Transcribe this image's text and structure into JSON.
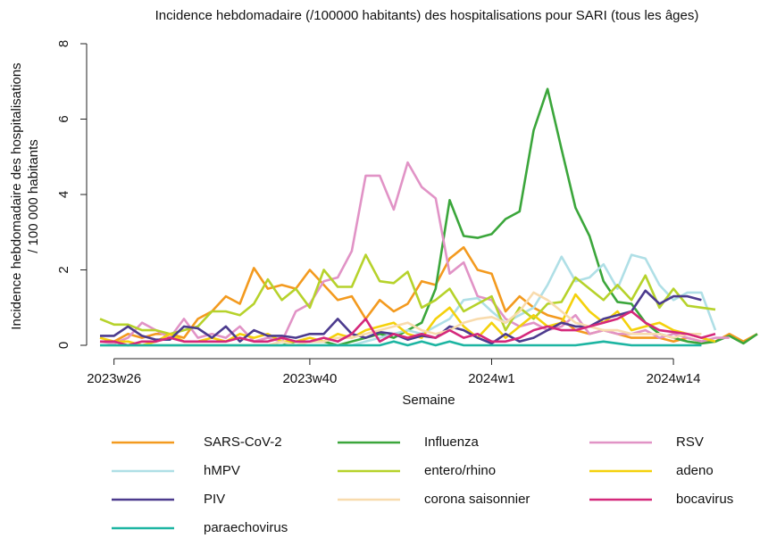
{
  "chart_data": {
    "type": "line",
    "title": "Incidence hebdomadaire (/100000 habitants) des hospitalisations pour SARI (tous les âges)",
    "xlabel": "Semaine",
    "ylabel": [
      "Incidence hebdomadaire des hospitalisations",
      "/ 100 000 habitants"
    ],
    "categories": [
      null,
      "2023w26",
      null,
      null,
      null,
      null,
      null,
      null,
      null,
      null,
      null,
      null,
      null,
      null,
      null,
      "2023w40",
      null,
      null,
      null,
      null,
      null,
      null,
      null,
      null,
      null,
      null,
      null,
      null,
      "2024w1",
      null,
      null,
      null,
      null,
      null,
      null,
      null,
      null,
      null,
      null,
      null,
      null,
      "2024w14",
      null,
      null,
      null,
      null,
      null,
      null
    ],
    "ylim": [
      -0.3,
      8.5
    ],
    "yticks": [
      0,
      2,
      4,
      6,
      8
    ],
    "series": [
      {
        "name": "SARS-CoV-2",
        "color": "#f39a1f",
        "values": [
          0.1,
          0.1,
          0.3,
          0.2,
          0.3,
          0.3,
          0.2,
          0.7,
          0.9,
          1.3,
          1.1,
          2.05,
          1.5,
          1.6,
          1.5,
          2.0,
          1.6,
          1.2,
          1.3,
          0.7,
          1.2,
          0.9,
          1.1,
          1.7,
          1.6,
          2.3,
          2.6,
          2.0,
          1.9,
          0.9,
          1.3,
          1.0,
          0.8,
          0.7,
          0.4,
          0.3,
          0.4,
          0.3,
          0.2,
          0.2,
          0.2,
          0.1,
          0.2,
          0.1,
          0.1,
          0.3,
          0.1,
          0.3
        ]
      },
      {
        "name": "Influenza",
        "color": "#3ba63b",
        "values": [
          0,
          0,
          0,
          0,
          0,
          0,
          0,
          0,
          0,
          0,
          0,
          0,
          0,
          0,
          0.1,
          0.1,
          0.1,
          0,
          0.1,
          0.2,
          0.3,
          0.2,
          0.4,
          0.6,
          1.5,
          3.85,
          2.9,
          2.85,
          2.95,
          3.35,
          3.55,
          5.7,
          6.8,
          5.2,
          3.65,
          2.9,
          1.7,
          1.15,
          1.1,
          0.6,
          0.3,
          0.2,
          0.1,
          0.05,
          0.1,
          0.25,
          0.05,
          0.3
        ]
      },
      {
        "name": "RSV",
        "color": "#e193c6",
        "values": [
          0.1,
          0.05,
          0.2,
          0.6,
          0.4,
          0.2,
          0.7,
          0.2,
          0.3,
          0.2,
          0.5,
          0.1,
          0.2,
          0.1,
          0.9,
          1.1,
          1.7,
          1.8,
          2.5,
          4.5,
          4.5,
          3.6,
          4.85,
          4.2,
          3.9,
          1.9,
          2.2,
          1.3,
          1.2,
          0.7,
          0.5,
          0.6,
          0.4,
          0.5,
          0.8,
          0.3,
          0.4,
          0.3,
          0.3,
          0.4,
          0.2,
          0.3,
          0.2,
          0.1,
          0.2,
          0.2,
          null,
          null
        ]
      },
      {
        "name": "hMPV",
        "color": "#afdfe6",
        "values": [
          0,
          0,
          0,
          0,
          0,
          0,
          0,
          0,
          0,
          0,
          0,
          0,
          0,
          0,
          0,
          0,
          0,
          0,
          0,
          0.1,
          0.2,
          0.3,
          0.4,
          0.3,
          0.5,
          0.7,
          1.2,
          1.25,
          0.9,
          0.6,
          0.8,
          1.0,
          1.6,
          2.35,
          1.7,
          1.8,
          2.15,
          1.5,
          2.4,
          2.3,
          1.6,
          1.2,
          1.4,
          1.4,
          0.4,
          null,
          null,
          null
        ]
      },
      {
        "name": "entero/rhino",
        "color": "#b6d22b",
        "values": [
          0.7,
          0.55,
          0.55,
          0.4,
          0.4,
          0.3,
          0.4,
          0.5,
          0.9,
          0.9,
          0.8,
          1.1,
          1.75,
          1.2,
          1.5,
          1.0,
          2.0,
          1.55,
          1.55,
          2.4,
          1.7,
          1.65,
          1.95,
          1.0,
          1.2,
          1.5,
          0.9,
          1.1,
          1.3,
          0.4,
          1.0,
          0.7,
          1.1,
          1.15,
          1.8,
          1.5,
          1.2,
          1.6,
          1.2,
          1.85,
          1.0,
          1.5,
          1.05,
          1.0,
          0.95,
          null,
          null,
          null
        ]
      },
      {
        "name": "adeno",
        "color": "#f4d10c",
        "values": [
          0.2,
          0.1,
          0.1,
          0,
          0.1,
          0.3,
          0.1,
          0.1,
          0.2,
          0.1,
          0.3,
          0.2,
          0.3,
          0.1,
          0.1,
          0.2,
          0.1,
          0.3,
          0.2,
          0.4,
          0.5,
          0.6,
          0.3,
          0.2,
          0.7,
          1.0,
          0.5,
          0.2,
          0.6,
          0.2,
          0.5,
          0.8,
          0.5,
          0.6,
          1.35,
          0.9,
          0.6,
          0.9,
          0.4,
          0.5,
          0.6,
          0.4,
          0.3,
          0.2,
          0.1,
          null,
          null,
          null
        ]
      },
      {
        "name": "PIV",
        "color": "#4c3b8e",
        "values": [
          0.25,
          0.25,
          0.5,
          0.25,
          0.15,
          0.15,
          0.5,
          0.45,
          0.2,
          0.5,
          0.1,
          0.4,
          0.25,
          0.25,
          0.2,
          0.3,
          0.3,
          0.7,
          0.3,
          0.2,
          0.35,
          0.3,
          0.15,
          0.25,
          0.2,
          0.5,
          0.4,
          0.2,
          0.05,
          0.3,
          0.1,
          0.2,
          0.4,
          0.6,
          0.5,
          0.5,
          0.7,
          0.8,
          0.9,
          1.45,
          1.1,
          1.3,
          1.3,
          1.2,
          null,
          null,
          null,
          null
        ]
      },
      {
        "name": "corona saisonnier",
        "color": "#f8dbad",
        "values": [
          0,
          0,
          0,
          0,
          0,
          0,
          0,
          0,
          0,
          0,
          0,
          0,
          0,
          0.1,
          0,
          0.1,
          0.1,
          0.2,
          0.2,
          0.3,
          0.4,
          0.5,
          0.6,
          0.4,
          0.3,
          0.4,
          0.6,
          0.7,
          0.75,
          0.6,
          0.9,
          1.4,
          1.2,
          0.9,
          0.6,
          0.5,
          0.4,
          0.4,
          0.3,
          0.3,
          0.3,
          0.2,
          0.3,
          0.3,
          null,
          null,
          null,
          null
        ]
      },
      {
        "name": "bocavirus",
        "color": "#d4287b",
        "values": [
          0.1,
          0.1,
          0,
          0.1,
          0.1,
          0.2,
          0.1,
          0.1,
          0.1,
          0.1,
          0.2,
          0.1,
          0.1,
          0.2,
          0.1,
          0.1,
          0.2,
          0.1,
          0.3,
          0.7,
          0.1,
          0.3,
          0.2,
          0.3,
          0.2,
          0.4,
          0.2,
          0.3,
          0.1,
          0.1,
          0.2,
          0.4,
          0.5,
          0.4,
          0.4,
          0.5,
          0.6,
          0.7,
          0.9,
          0.6,
          0.4,
          0.35,
          0.3,
          0.2,
          0.3,
          null,
          null,
          null
        ]
      },
      {
        "name": "paraechovirus",
        "color": "#1db5a2",
        "values": [
          0,
          0,
          0,
          0,
          0,
          0,
          0,
          0,
          0,
          0,
          0,
          0,
          0,
          0,
          0,
          0,
          0,
          0,
          0,
          0,
          0,
          0.1,
          0,
          0.1,
          0,
          0.1,
          0,
          0,
          0,
          0,
          0,
          0,
          0,
          0,
          0,
          0.05,
          0.1,
          0.05,
          0,
          0,
          0,
          0,
          0,
          0,
          null,
          null,
          null,
          null
        ]
      }
    ]
  }
}
